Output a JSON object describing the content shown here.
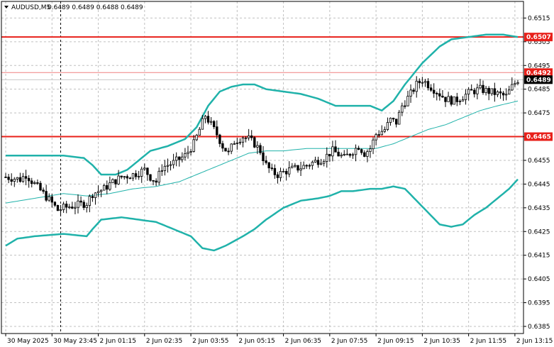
{
  "header": {
    "symbol_title": "AUDUSD,M5",
    "ohlc": "0.6489 0.6489 0.6488 0.6489"
  },
  "colors": {
    "band": "#20b2aa",
    "level": "#e8201a",
    "level_thin": "#f08080",
    "grid": "#c0c0c0",
    "candle": "#000000",
    "bid_box": "#000000",
    "label_box": "#e8201a"
  },
  "chart_data": {
    "type": "candlestick",
    "ylim": [
      0.6382,
      0.6522
    ],
    "y_ticks": [
      "0.6515",
      "0.6505",
      "0.6495",
      "0.6485",
      "0.6475",
      "0.6465",
      "0.6455",
      "0.6445",
      "0.6435",
      "0.6425",
      "0.6415",
      "0.6405",
      "0.6395",
      "0.6385"
    ],
    "y_tick_values": [
      0.6515,
      0.6505,
      0.6495,
      0.6485,
      0.6475,
      0.6465,
      0.6455,
      0.6445,
      0.6435,
      0.6425,
      0.6415,
      0.6405,
      0.6395,
      0.6385
    ],
    "x_ticks": [
      "30 May 2025",
      "30 May 23:45",
      "2 Jun 01:15",
      "2 Jun 02:35",
      "2 Jun 03:55",
      "2 Jun 05:15",
      "2 Jun 06:35",
      "2 Jun 07:55",
      "2 Jun 09:15",
      "2 Jun 10:35",
      "2 Jun 11:55",
      "2 Jun 13:15"
    ],
    "x_tick_bars": [
      0,
      16,
      32,
      48,
      64,
      80,
      96,
      112,
      128,
      144,
      160,
      176
    ],
    "bar_count": 178,
    "session_divider_bar": 19,
    "levels": [
      {
        "value": 0.6507,
        "label": "0.6507",
        "style": "thick"
      },
      {
        "value": 0.6492,
        "label": "0.6492",
        "style": "thin"
      },
      {
        "value": 0.6465,
        "label": "0.6465",
        "style": "thick"
      }
    ],
    "bid": {
      "value": 0.6489,
      "label": "0.6489"
    },
    "close_anchors": [
      [
        0,
        0.6448
      ],
      [
        5,
        0.6447
      ],
      [
        7,
        0.6449
      ],
      [
        10,
        0.6445
      ],
      [
        13,
        0.6441
      ],
      [
        16,
        0.6437
      ],
      [
        18,
        0.6434
      ],
      [
        20,
        0.6435
      ],
      [
        24,
        0.6436
      ],
      [
        28,
        0.6437
      ],
      [
        30,
        0.6441
      ],
      [
        34,
        0.6443
      ],
      [
        36,
        0.6445
      ],
      [
        40,
        0.6448
      ],
      [
        44,
        0.6449
      ],
      [
        48,
        0.6451
      ],
      [
        50,
        0.6448
      ],
      [
        52,
        0.6446
      ],
      [
        54,
        0.6452
      ],
      [
        58,
        0.6454
      ],
      [
        62,
        0.6457
      ],
      [
        65,
        0.6462
      ],
      [
        67,
        0.6468
      ],
      [
        69,
        0.6474
      ],
      [
        71,
        0.647
      ],
      [
        73,
        0.6466
      ],
      [
        75,
        0.6461
      ],
      [
        77,
        0.6458
      ],
      [
        79,
        0.6463
      ],
      [
        82,
        0.6465
      ],
      [
        84,
        0.6464
      ],
      [
        86,
        0.6462
      ],
      [
        88,
        0.6459
      ],
      [
        90,
        0.6453
      ],
      [
        92,
        0.645
      ],
      [
        94,
        0.6449
      ],
      [
        98,
        0.6451
      ],
      [
        102,
        0.6452
      ],
      [
        106,
        0.6454
      ],
      [
        110,
        0.6456
      ],
      [
        113,
        0.6459
      ],
      [
        117,
        0.6456
      ],
      [
        120,
        0.6459
      ],
      [
        122,
        0.6461
      ],
      [
        124,
        0.6458
      ],
      [
        126,
        0.646
      ],
      [
        128,
        0.6466
      ],
      [
        131,
        0.6468
      ],
      [
        133,
        0.6472
      ],
      [
        135,
        0.6471
      ],
      [
        137,
        0.6478
      ],
      [
        140,
        0.6483
      ],
      [
        142,
        0.6487
      ],
      [
        144,
        0.6489
      ],
      [
        146,
        0.6487
      ],
      [
        148,
        0.6485
      ],
      [
        150,
        0.6483
      ],
      [
        152,
        0.6481
      ],
      [
        155,
        0.648
      ],
      [
        158,
        0.6482
      ],
      [
        161,
        0.6484
      ],
      [
        164,
        0.6485
      ],
      [
        167,
        0.6484
      ],
      [
        170,
        0.6483
      ],
      [
        173,
        0.6482
      ],
      [
        175,
        0.6486
      ],
      [
        177,
        0.6489
      ]
    ],
    "bollinger": {
      "period": 20,
      "upper_anchors": [
        [
          0,
          0.6457
        ],
        [
          10,
          0.6457
        ],
        [
          20,
          0.6457
        ],
        [
          27,
          0.6456
        ],
        [
          30,
          0.6453
        ],
        [
          33,
          0.6449
        ],
        [
          38,
          0.6449
        ],
        [
          42,
          0.6451
        ],
        [
          46,
          0.6455
        ],
        [
          50,
          0.6459
        ],
        [
          56,
          0.6461
        ],
        [
          62,
          0.6464
        ],
        [
          66,
          0.6469
        ],
        [
          70,
          0.6478
        ],
        [
          74,
          0.6484
        ],
        [
          78,
          0.6486
        ],
        [
          82,
          0.6487
        ],
        [
          86,
          0.6487
        ],
        [
          90,
          0.6485
        ],
        [
          96,
          0.6484
        ],
        [
          102,
          0.6483
        ],
        [
          108,
          0.6481
        ],
        [
          114,
          0.6478
        ],
        [
          120,
          0.6478
        ],
        [
          126,
          0.6478
        ],
        [
          130,
          0.6476
        ],
        [
          134,
          0.648
        ],
        [
          138,
          0.6487
        ],
        [
          144,
          0.6496
        ],
        [
          150,
          0.6503
        ],
        [
          154,
          0.6506
        ],
        [
          160,
          0.6507
        ],
        [
          166,
          0.6508
        ],
        [
          172,
          0.6508
        ],
        [
          177,
          0.6507
        ]
      ],
      "middle_anchors": [
        [
          0,
          0.6437
        ],
        [
          10,
          0.6439
        ],
        [
          20,
          0.6441
        ],
        [
          28,
          0.644
        ],
        [
          36,
          0.6441
        ],
        [
          44,
          0.6443
        ],
        [
          52,
          0.6444
        ],
        [
          60,
          0.6446
        ],
        [
          66,
          0.6449
        ],
        [
          72,
          0.6452
        ],
        [
          78,
          0.6455
        ],
        [
          84,
          0.6458
        ],
        [
          90,
          0.6459
        ],
        [
          96,
          0.6459
        ],
        [
          104,
          0.646
        ],
        [
          112,
          0.646
        ],
        [
          120,
          0.646
        ],
        [
          128,
          0.646
        ],
        [
          134,
          0.6462
        ],
        [
          140,
          0.6465
        ],
        [
          146,
          0.6468
        ],
        [
          152,
          0.647
        ],
        [
          158,
          0.6473
        ],
        [
          164,
          0.6476
        ],
        [
          170,
          0.6478
        ],
        [
          177,
          0.648
        ]
      ],
      "lower_anchors": [
        [
          0,
          0.6419
        ],
        [
          4,
          0.6422
        ],
        [
          10,
          0.6423
        ],
        [
          20,
          0.6424
        ],
        [
          28,
          0.6423
        ],
        [
          30,
          0.6426
        ],
        [
          33,
          0.643
        ],
        [
          40,
          0.6431
        ],
        [
          46,
          0.643
        ],
        [
          52,
          0.6429
        ],
        [
          58,
          0.6426
        ],
        [
          64,
          0.6423
        ],
        [
          68,
          0.6418
        ],
        [
          72,
          0.6417
        ],
        [
          76,
          0.6419
        ],
        [
          82,
          0.6423
        ],
        [
          86,
          0.6426
        ],
        [
          90,
          0.643
        ],
        [
          96,
          0.6435
        ],
        [
          102,
          0.6438
        ],
        [
          108,
          0.6439
        ],
        [
          112,
          0.644
        ],
        [
          116,
          0.6442
        ],
        [
          120,
          0.6442
        ],
        [
          126,
          0.6443
        ],
        [
          130,
          0.6443
        ],
        [
          134,
          0.6444
        ],
        [
          138,
          0.6443
        ],
        [
          142,
          0.6438
        ],
        [
          146,
          0.6433
        ],
        [
          150,
          0.6428
        ],
        [
          154,
          0.6427
        ],
        [
          158,
          0.6428
        ],
        [
          162,
          0.6432
        ],
        [
          166,
          0.6435
        ],
        [
          170,
          0.6439
        ],
        [
          174,
          0.6443
        ],
        [
          177,
          0.6447
        ]
      ]
    }
  }
}
